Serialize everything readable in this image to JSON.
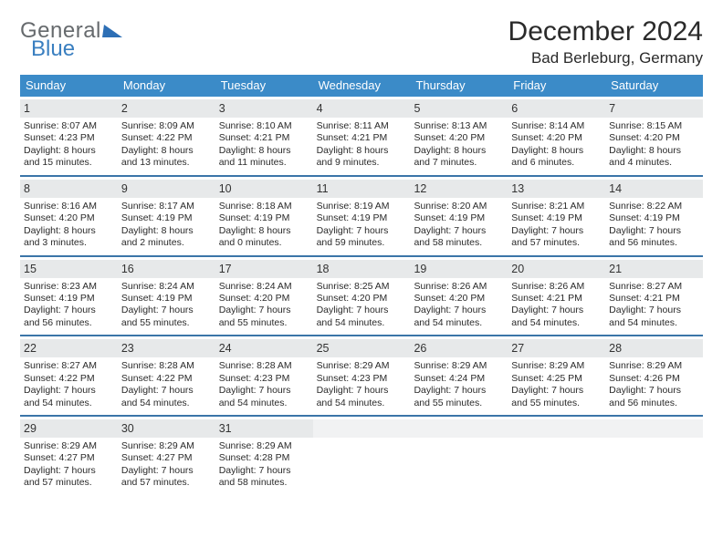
{
  "logo": {
    "word1": "General",
    "word2": "Blue"
  },
  "title": "December 2024",
  "location": "Bad Berleburg, Germany",
  "colors": {
    "header_bg": "#3b8bc8",
    "header_text": "#ffffff",
    "divider": "#3b75a8",
    "daynum_bg": "#e7e9ea",
    "logo_gray": "#666a6d",
    "logo_blue": "#3a7fc0"
  },
  "dows": [
    "Sunday",
    "Monday",
    "Tuesday",
    "Wednesday",
    "Thursday",
    "Friday",
    "Saturday"
  ],
  "weeks": [
    [
      {
        "n": "1",
        "sr": "Sunrise: 8:07 AM",
        "ss": "Sunset: 4:23 PM",
        "dl": "Daylight: 8 hours and 15 minutes."
      },
      {
        "n": "2",
        "sr": "Sunrise: 8:09 AM",
        "ss": "Sunset: 4:22 PM",
        "dl": "Daylight: 8 hours and 13 minutes."
      },
      {
        "n": "3",
        "sr": "Sunrise: 8:10 AM",
        "ss": "Sunset: 4:21 PM",
        "dl": "Daylight: 8 hours and 11 minutes."
      },
      {
        "n": "4",
        "sr": "Sunrise: 8:11 AM",
        "ss": "Sunset: 4:21 PM",
        "dl": "Daylight: 8 hours and 9 minutes."
      },
      {
        "n": "5",
        "sr": "Sunrise: 8:13 AM",
        "ss": "Sunset: 4:20 PM",
        "dl": "Daylight: 8 hours and 7 minutes."
      },
      {
        "n": "6",
        "sr": "Sunrise: 8:14 AM",
        "ss": "Sunset: 4:20 PM",
        "dl": "Daylight: 8 hours and 6 minutes."
      },
      {
        "n": "7",
        "sr": "Sunrise: 8:15 AM",
        "ss": "Sunset: 4:20 PM",
        "dl": "Daylight: 8 hours and 4 minutes."
      }
    ],
    [
      {
        "n": "8",
        "sr": "Sunrise: 8:16 AM",
        "ss": "Sunset: 4:20 PM",
        "dl": "Daylight: 8 hours and 3 minutes."
      },
      {
        "n": "9",
        "sr": "Sunrise: 8:17 AM",
        "ss": "Sunset: 4:19 PM",
        "dl": "Daylight: 8 hours and 2 minutes."
      },
      {
        "n": "10",
        "sr": "Sunrise: 8:18 AM",
        "ss": "Sunset: 4:19 PM",
        "dl": "Daylight: 8 hours and 0 minutes."
      },
      {
        "n": "11",
        "sr": "Sunrise: 8:19 AM",
        "ss": "Sunset: 4:19 PM",
        "dl": "Daylight: 7 hours and 59 minutes."
      },
      {
        "n": "12",
        "sr": "Sunrise: 8:20 AM",
        "ss": "Sunset: 4:19 PM",
        "dl": "Daylight: 7 hours and 58 minutes."
      },
      {
        "n": "13",
        "sr": "Sunrise: 8:21 AM",
        "ss": "Sunset: 4:19 PM",
        "dl": "Daylight: 7 hours and 57 minutes."
      },
      {
        "n": "14",
        "sr": "Sunrise: 8:22 AM",
        "ss": "Sunset: 4:19 PM",
        "dl": "Daylight: 7 hours and 56 minutes."
      }
    ],
    [
      {
        "n": "15",
        "sr": "Sunrise: 8:23 AM",
        "ss": "Sunset: 4:19 PM",
        "dl": "Daylight: 7 hours and 56 minutes."
      },
      {
        "n": "16",
        "sr": "Sunrise: 8:24 AM",
        "ss": "Sunset: 4:19 PM",
        "dl": "Daylight: 7 hours and 55 minutes."
      },
      {
        "n": "17",
        "sr": "Sunrise: 8:24 AM",
        "ss": "Sunset: 4:20 PM",
        "dl": "Daylight: 7 hours and 55 minutes."
      },
      {
        "n": "18",
        "sr": "Sunrise: 8:25 AM",
        "ss": "Sunset: 4:20 PM",
        "dl": "Daylight: 7 hours and 54 minutes."
      },
      {
        "n": "19",
        "sr": "Sunrise: 8:26 AM",
        "ss": "Sunset: 4:20 PM",
        "dl": "Daylight: 7 hours and 54 minutes."
      },
      {
        "n": "20",
        "sr": "Sunrise: 8:26 AM",
        "ss": "Sunset: 4:21 PM",
        "dl": "Daylight: 7 hours and 54 minutes."
      },
      {
        "n": "21",
        "sr": "Sunrise: 8:27 AM",
        "ss": "Sunset: 4:21 PM",
        "dl": "Daylight: 7 hours and 54 minutes."
      }
    ],
    [
      {
        "n": "22",
        "sr": "Sunrise: 8:27 AM",
        "ss": "Sunset: 4:22 PM",
        "dl": "Daylight: 7 hours and 54 minutes."
      },
      {
        "n": "23",
        "sr": "Sunrise: 8:28 AM",
        "ss": "Sunset: 4:22 PM",
        "dl": "Daylight: 7 hours and 54 minutes."
      },
      {
        "n": "24",
        "sr": "Sunrise: 8:28 AM",
        "ss": "Sunset: 4:23 PM",
        "dl": "Daylight: 7 hours and 54 minutes."
      },
      {
        "n": "25",
        "sr": "Sunrise: 8:29 AM",
        "ss": "Sunset: 4:23 PM",
        "dl": "Daylight: 7 hours and 54 minutes."
      },
      {
        "n": "26",
        "sr": "Sunrise: 8:29 AM",
        "ss": "Sunset: 4:24 PM",
        "dl": "Daylight: 7 hours and 55 minutes."
      },
      {
        "n": "27",
        "sr": "Sunrise: 8:29 AM",
        "ss": "Sunset: 4:25 PM",
        "dl": "Daylight: 7 hours and 55 minutes."
      },
      {
        "n": "28",
        "sr": "Sunrise: 8:29 AM",
        "ss": "Sunset: 4:26 PM",
        "dl": "Daylight: 7 hours and 56 minutes."
      }
    ],
    [
      {
        "n": "29",
        "sr": "Sunrise: 8:29 AM",
        "ss": "Sunset: 4:27 PM",
        "dl": "Daylight: 7 hours and 57 minutes."
      },
      {
        "n": "30",
        "sr": "Sunrise: 8:29 AM",
        "ss": "Sunset: 4:27 PM",
        "dl": "Daylight: 7 hours and 57 minutes."
      },
      {
        "n": "31",
        "sr": "Sunrise: 8:29 AM",
        "ss": "Sunset: 4:28 PM",
        "dl": "Daylight: 7 hours and 58 minutes."
      },
      {
        "blank": true
      },
      {
        "blank": true
      },
      {
        "blank": true
      },
      {
        "blank": true
      }
    ]
  ]
}
